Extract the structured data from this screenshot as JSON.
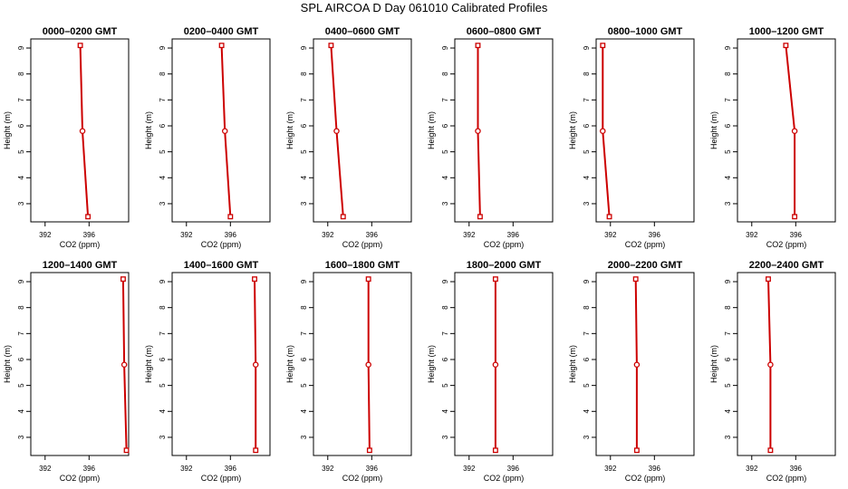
{
  "page": {
    "title": "SPL AIRCOA D  Day 061010  Calibrated Profiles"
  },
  "style": {
    "line_color": "#cc0000",
    "axis_color": "#000000"
  },
  "chart_data": [
    {
      "type": "line",
      "title": "0000–0200 GMT",
      "xlabel": "CO2 (ppm)",
      "ylabel": "Height (m)",
      "xlim": [
        390.7,
        399.6
      ],
      "ylim": [
        2.3,
        9.35
      ],
      "xticks": [
        392,
        396
      ],
      "yticks": [
        3,
        4,
        5,
        6,
        7,
        8,
        9
      ],
      "series": [
        {
          "x": [
            395.9,
            395.4,
            395.2
          ],
          "y": [
            2.5,
            5.8,
            9.1
          ]
        }
      ]
    },
    {
      "type": "line",
      "title": "0200–0400 GMT",
      "xlabel": "CO2 (ppm)",
      "ylabel": "Height (m)",
      "xlim": [
        390.7,
        399.6
      ],
      "ylim": [
        2.3,
        9.35
      ],
      "xticks": [
        392,
        396
      ],
      "yticks": [
        3,
        4,
        5,
        6,
        7,
        8,
        9
      ],
      "series": [
        {
          "x": [
            396.0,
            395.5,
            395.2
          ],
          "y": [
            2.5,
            5.8,
            9.1
          ]
        }
      ]
    },
    {
      "type": "line",
      "title": "0400–0600 GMT",
      "xlabel": "CO2 (ppm)",
      "ylabel": "Height (m)",
      "xlim": [
        390.7,
        399.6
      ],
      "ylim": [
        2.3,
        9.35
      ],
      "xticks": [
        392,
        396
      ],
      "yticks": [
        3,
        4,
        5,
        6,
        7,
        8,
        9
      ],
      "series": [
        {
          "x": [
            393.4,
            392.8,
            392.3
          ],
          "y": [
            2.5,
            5.8,
            9.1
          ]
        }
      ]
    },
    {
      "type": "line",
      "title": "0600–0800 GMT",
      "xlabel": "CO2 (ppm)",
      "ylabel": "Height (m)",
      "xlim": [
        390.7,
        399.6
      ],
      "ylim": [
        2.3,
        9.35
      ],
      "xticks": [
        392,
        396
      ],
      "yticks": [
        3,
        4,
        5,
        6,
        7,
        8,
        9
      ],
      "series": [
        {
          "x": [
            393.0,
            392.8,
            392.8
          ],
          "y": [
            2.5,
            5.8,
            9.1
          ]
        }
      ]
    },
    {
      "type": "line",
      "title": "0800–1000 GMT",
      "xlabel": "CO2 (ppm)",
      "ylabel": "Height (m)",
      "xlim": [
        390.7,
        399.6
      ],
      "ylim": [
        2.3,
        9.35
      ],
      "xticks": [
        392,
        396
      ],
      "yticks": [
        3,
        4,
        5,
        6,
        7,
        8,
        9
      ],
      "series": [
        {
          "x": [
            391.9,
            391.3,
            391.3
          ],
          "y": [
            2.5,
            5.8,
            9.1
          ]
        }
      ]
    },
    {
      "type": "line",
      "title": "1000–1200 GMT",
      "xlabel": "CO2 (ppm)",
      "ylabel": "Height (m)",
      "xlim": [
        390.7,
        399.6
      ],
      "ylim": [
        2.3,
        9.35
      ],
      "xticks": [
        392,
        396
      ],
      "yticks": [
        3,
        4,
        5,
        6,
        7,
        8,
        9
      ],
      "series": [
        {
          "x": [
            395.9,
            395.9,
            395.1
          ],
          "y": [
            2.5,
            5.8,
            9.1
          ]
        }
      ]
    },
    {
      "type": "line",
      "title": "1200–1400 GMT",
      "xlabel": "CO2 (ppm)",
      "ylabel": "Height (m)",
      "xlim": [
        390.7,
        399.6
      ],
      "ylim": [
        2.3,
        9.35
      ],
      "xticks": [
        392,
        396
      ],
      "yticks": [
        3,
        4,
        5,
        6,
        7,
        8,
        9
      ],
      "series": [
        {
          "x": [
            399.4,
            399.2,
            399.1
          ],
          "y": [
            2.5,
            5.8,
            9.1
          ]
        }
      ]
    },
    {
      "type": "line",
      "title": "1400–1600 GMT",
      "xlabel": "CO2 (ppm)",
      "ylabel": "Height (m)",
      "xlim": [
        390.7,
        399.6
      ],
      "ylim": [
        2.3,
        9.35
      ],
      "xticks": [
        392,
        396
      ],
      "yticks": [
        3,
        4,
        5,
        6,
        7,
        8,
        9
      ],
      "series": [
        {
          "x": [
            398.3,
            398.3,
            398.2
          ],
          "y": [
            2.5,
            5.8,
            9.1
          ]
        }
      ]
    },
    {
      "type": "line",
      "title": "1600–1800 GMT",
      "xlabel": "CO2 (ppm)",
      "ylabel": "Height (m)",
      "xlim": [
        390.7,
        399.6
      ],
      "ylim": [
        2.3,
        9.35
      ],
      "xticks": [
        392,
        396
      ],
      "yticks": [
        3,
        4,
        5,
        6,
        7,
        8,
        9
      ],
      "series": [
        {
          "x": [
            395.8,
            395.7,
            395.7
          ],
          "y": [
            2.5,
            5.8,
            9.1
          ]
        }
      ]
    },
    {
      "type": "line",
      "title": "1800–2000 GMT",
      "xlabel": "CO2 (ppm)",
      "ylabel": "Height (m)",
      "xlim": [
        390.7,
        399.6
      ],
      "ylim": [
        2.3,
        9.35
      ],
      "xticks": [
        392,
        396
      ],
      "yticks": [
        3,
        4,
        5,
        6,
        7,
        8,
        9
      ],
      "series": [
        {
          "x": [
            394.4,
            394.4,
            394.4
          ],
          "y": [
            2.5,
            5.8,
            9.1
          ]
        }
      ]
    },
    {
      "type": "line",
      "title": "2000–2200 GMT",
      "xlabel": "CO2 (ppm)",
      "ylabel": "Height (m)",
      "xlim": [
        390.7,
        399.6
      ],
      "ylim": [
        2.3,
        9.35
      ],
      "xticks": [
        392,
        396
      ],
      "yticks": [
        3,
        4,
        5,
        6,
        7,
        8,
        9
      ],
      "series": [
        {
          "x": [
            394.4,
            394.4,
            394.3
          ],
          "y": [
            2.5,
            5.8,
            9.1
          ]
        }
      ]
    },
    {
      "type": "line",
      "title": "2200–2400 GMT",
      "xlabel": "CO2 (ppm)",
      "ylabel": "Height (m)",
      "xlim": [
        390.7,
        399.6
      ],
      "ylim": [
        2.3,
        9.35
      ],
      "xticks": [
        392,
        396
      ],
      "yticks": [
        3,
        4,
        5,
        6,
        7,
        8,
        9
      ],
      "series": [
        {
          "x": [
            393.7,
            393.7,
            393.5
          ],
          "y": [
            2.5,
            5.8,
            9.1
          ]
        }
      ]
    }
  ]
}
